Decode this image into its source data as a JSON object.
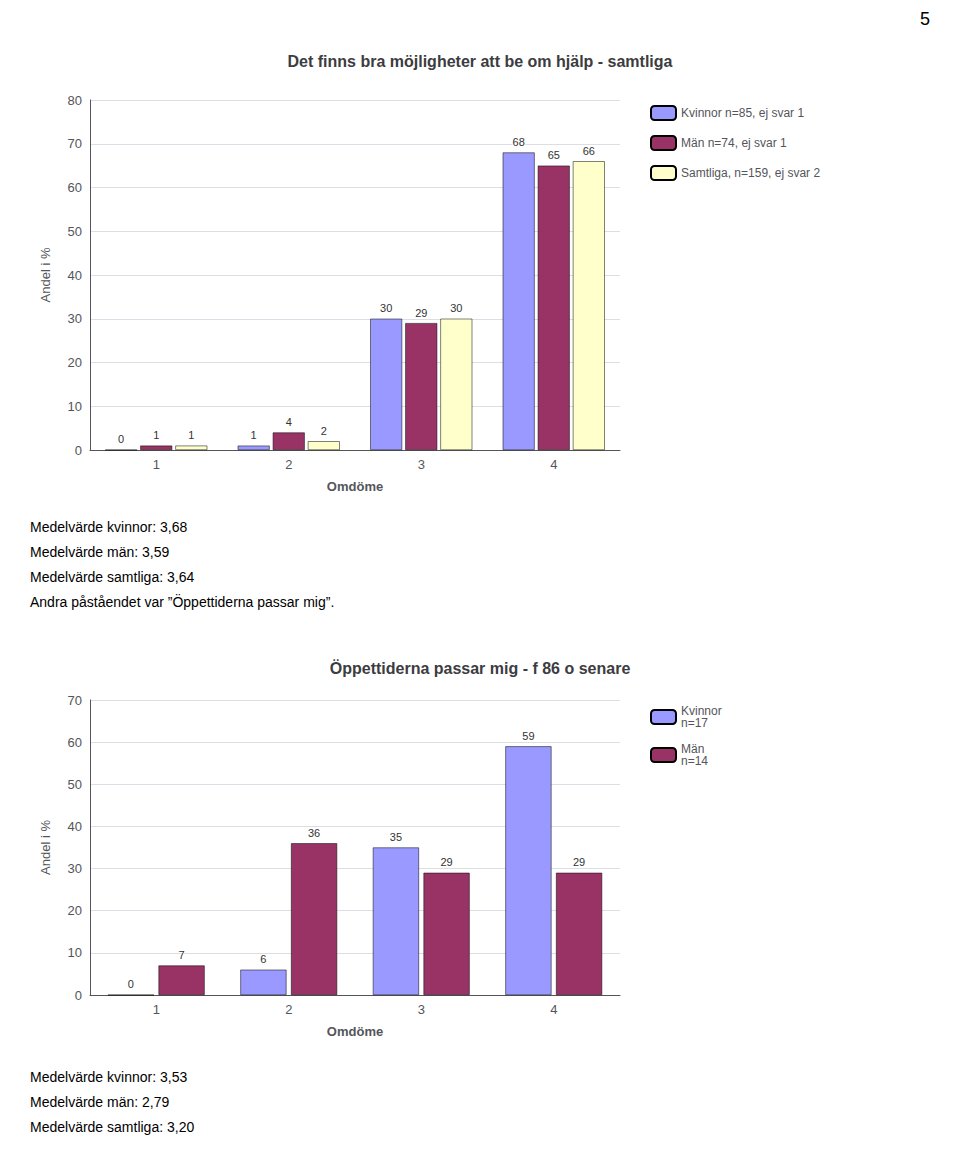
{
  "annotations": [
    "5"
  ],
  "chart_data": [
    {
      "type": "bar",
      "title": "Det finns bra möjligheter att be om hjälp - samtliga",
      "categories": [
        1,
        2,
        3,
        4
      ],
      "series": [
        {
          "name": "Kvinnor n=85, ej svar 1",
          "color": "#9999FF",
          "values": [
            0,
            1,
            30,
            68
          ]
        },
        {
          "name": "Män n=74, ej svar 1",
          "color": "#993366",
          "values": [
            1,
            4,
            29,
            65
          ]
        },
        {
          "name": "Samtliga, n=159, ej svar 2",
          "color": "#FFFFCC",
          "values": [
            1,
            2,
            30,
            66
          ]
        }
      ],
      "xlabel": "Omdöme",
      "ylabel": "Andel i %",
      "ylim": [
        0,
        80
      ],
      "yticks": [
        0,
        10,
        20,
        30,
        40,
        50,
        60,
        70,
        80
      ],
      "grid": true,
      "data_labels": true,
      "legend": "right",
      "annotations": [
        "Medelvärde kvinnor: 3,68",
        "Medelvärde män: 3,59",
        "Medelvärde samtliga: 3,64",
        "Andra påståendet var ”Öppettiderna passar mig”."
      ]
    },
    {
      "type": "bar",
      "title": "Öppettiderna passar mig - f 86 o senare",
      "categories": [
        1,
        2,
        3,
        4
      ],
      "series": [
        {
          "name": "Kvinnor\nn=17",
          "color": "#9999FF",
          "values": [
            0,
            6,
            35,
            59
          ]
        },
        {
          "name": "Män\nn=14",
          "color": "#993366",
          "values": [
            7,
            36,
            29,
            29
          ]
        }
      ],
      "xlabel": "Omdöme",
      "ylabel": "Andel i %",
      "ylim": [
        0,
        70
      ],
      "yticks": [
        0,
        10,
        20,
        30,
        40,
        50,
        60,
        70
      ],
      "grid": true,
      "data_labels": true,
      "legend": "right",
      "annotations": [
        "Medelvärde kvinnor: 3,53",
        "Medelvärde män: 2,79",
        "Medelvärde samtliga: 3,20"
      ]
    }
  ]
}
